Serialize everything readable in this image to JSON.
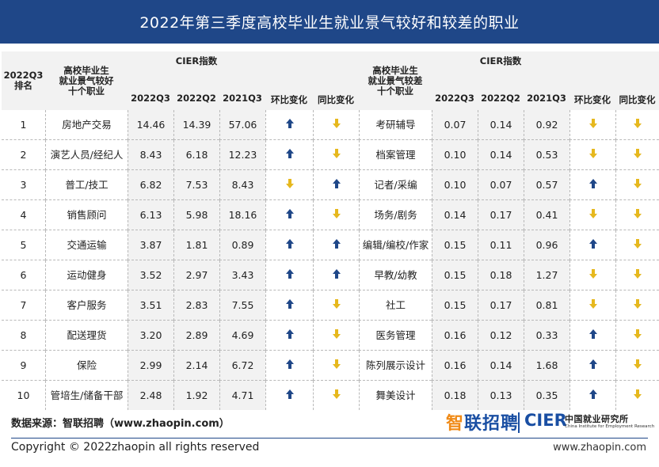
{
  "title": "2022年第三季度高校毕业生就业景气较好和较差的职业",
  "header": {
    "rank": "2022Q3\n排名",
    "good_occ": "高校毕业生\n就业景气较好\n十个职业",
    "bad_occ": "高校毕业生\n就业景气较差\n十个职业",
    "cier": "CIER指数",
    "q3_2022": "2022Q3",
    "q2_2022": "2022Q2",
    "q3_2021": "2021Q3",
    "qoq": "环比变化",
    "yoy": "同比变化"
  },
  "colors": {
    "up": "#1f4788",
    "down": "#e6b81e",
    "banner": "#1f4788"
  },
  "rows": [
    {
      "rank": "1",
      "good": {
        "name": "房地产交易",
        "q3": "14.46",
        "q2": "14.39",
        "y": "57.06",
        "qoq": "up",
        "yoy": "down"
      },
      "bad": {
        "name": "考研辅导",
        "q3": "0.07",
        "q2": "0.14",
        "y": "0.92",
        "qoq": "down",
        "yoy": "down"
      }
    },
    {
      "rank": "2",
      "good": {
        "name": "演艺人员/经纪人",
        "q3": "8.43",
        "q2": "6.18",
        "y": "12.23",
        "qoq": "up",
        "yoy": "down"
      },
      "bad": {
        "name": "档案管理",
        "q3": "0.10",
        "q2": "0.14",
        "y": "0.53",
        "qoq": "down",
        "yoy": "down"
      }
    },
    {
      "rank": "3",
      "good": {
        "name": "普工/技工",
        "q3": "6.82",
        "q2": "7.53",
        "y": "8.43",
        "qoq": "down",
        "yoy": "up"
      },
      "bad": {
        "name": "记者/采编",
        "q3": "0.10",
        "q2": "0.07",
        "y": "0.57",
        "qoq": "up",
        "yoy": "down"
      }
    },
    {
      "rank": "4",
      "good": {
        "name": "销售顾问",
        "q3": "6.13",
        "q2": "5.98",
        "y": "18.16",
        "qoq": "up",
        "yoy": "down"
      },
      "bad": {
        "name": "场务/剧务",
        "q3": "0.14",
        "q2": "0.17",
        "y": "0.41",
        "qoq": "down",
        "yoy": "down"
      }
    },
    {
      "rank": "5",
      "good": {
        "name": "交通运输",
        "q3": "3.87",
        "q2": "1.81",
        "y": "0.89",
        "qoq": "up",
        "yoy": "up"
      },
      "bad": {
        "name": "编辑/编校/作家",
        "q3": "0.15",
        "q2": "0.11",
        "y": "0.96",
        "qoq": "up",
        "yoy": "down"
      }
    },
    {
      "rank": "6",
      "good": {
        "name": "运动健身",
        "q3": "3.52",
        "q2": "2.97",
        "y": "3.43",
        "qoq": "up",
        "yoy": "up"
      },
      "bad": {
        "name": "早教/幼教",
        "q3": "0.15",
        "q2": "0.18",
        "y": "1.27",
        "qoq": "down",
        "yoy": "down"
      }
    },
    {
      "rank": "7",
      "good": {
        "name": "客户服务",
        "q3": "3.51",
        "q2": "2.83",
        "y": "7.55",
        "qoq": "up",
        "yoy": "down"
      },
      "bad": {
        "name": "社工",
        "q3": "0.15",
        "q2": "0.17",
        "y": "0.81",
        "qoq": "down",
        "yoy": "down"
      }
    },
    {
      "rank": "8",
      "good": {
        "name": "配送理货",
        "q3": "3.20",
        "q2": "2.89",
        "y": "4.69",
        "qoq": "up",
        "yoy": "down"
      },
      "bad": {
        "name": "医务管理",
        "q3": "0.16",
        "q2": "0.12",
        "y": "0.33",
        "qoq": "up",
        "yoy": "down"
      }
    },
    {
      "rank": "9",
      "good": {
        "name": "保险",
        "q3": "2.99",
        "q2": "2.14",
        "y": "6.72",
        "qoq": "up",
        "yoy": "down"
      },
      "bad": {
        "name": "陈列展示设计",
        "q3": "0.16",
        "q2": "0.14",
        "y": "1.68",
        "qoq": "up",
        "yoy": "down"
      }
    },
    {
      "rank": "10",
      "good": {
        "name": "管培生/储备干部",
        "q3": "2.48",
        "q2": "1.92",
        "y": "4.71",
        "qoq": "up",
        "yoy": "down"
      },
      "bad": {
        "name": "舞美设计",
        "q3": "0.18",
        "q2": "0.13",
        "y": "0.35",
        "qoq": "up",
        "yoy": "down"
      }
    }
  ],
  "footer": {
    "source": "数据来源：智联招聘（www.zhaopin.com）",
    "logo_zhilian": "智联招聘",
    "logo_cier": "CIER",
    "logo_cier_cn": "中国就业研究所",
    "logo_cier_en": "China Institute for Employment Research",
    "copyright": "Copyright ©  2022zhaopin all rights reserved",
    "website": "www.zhaopin.com"
  }
}
